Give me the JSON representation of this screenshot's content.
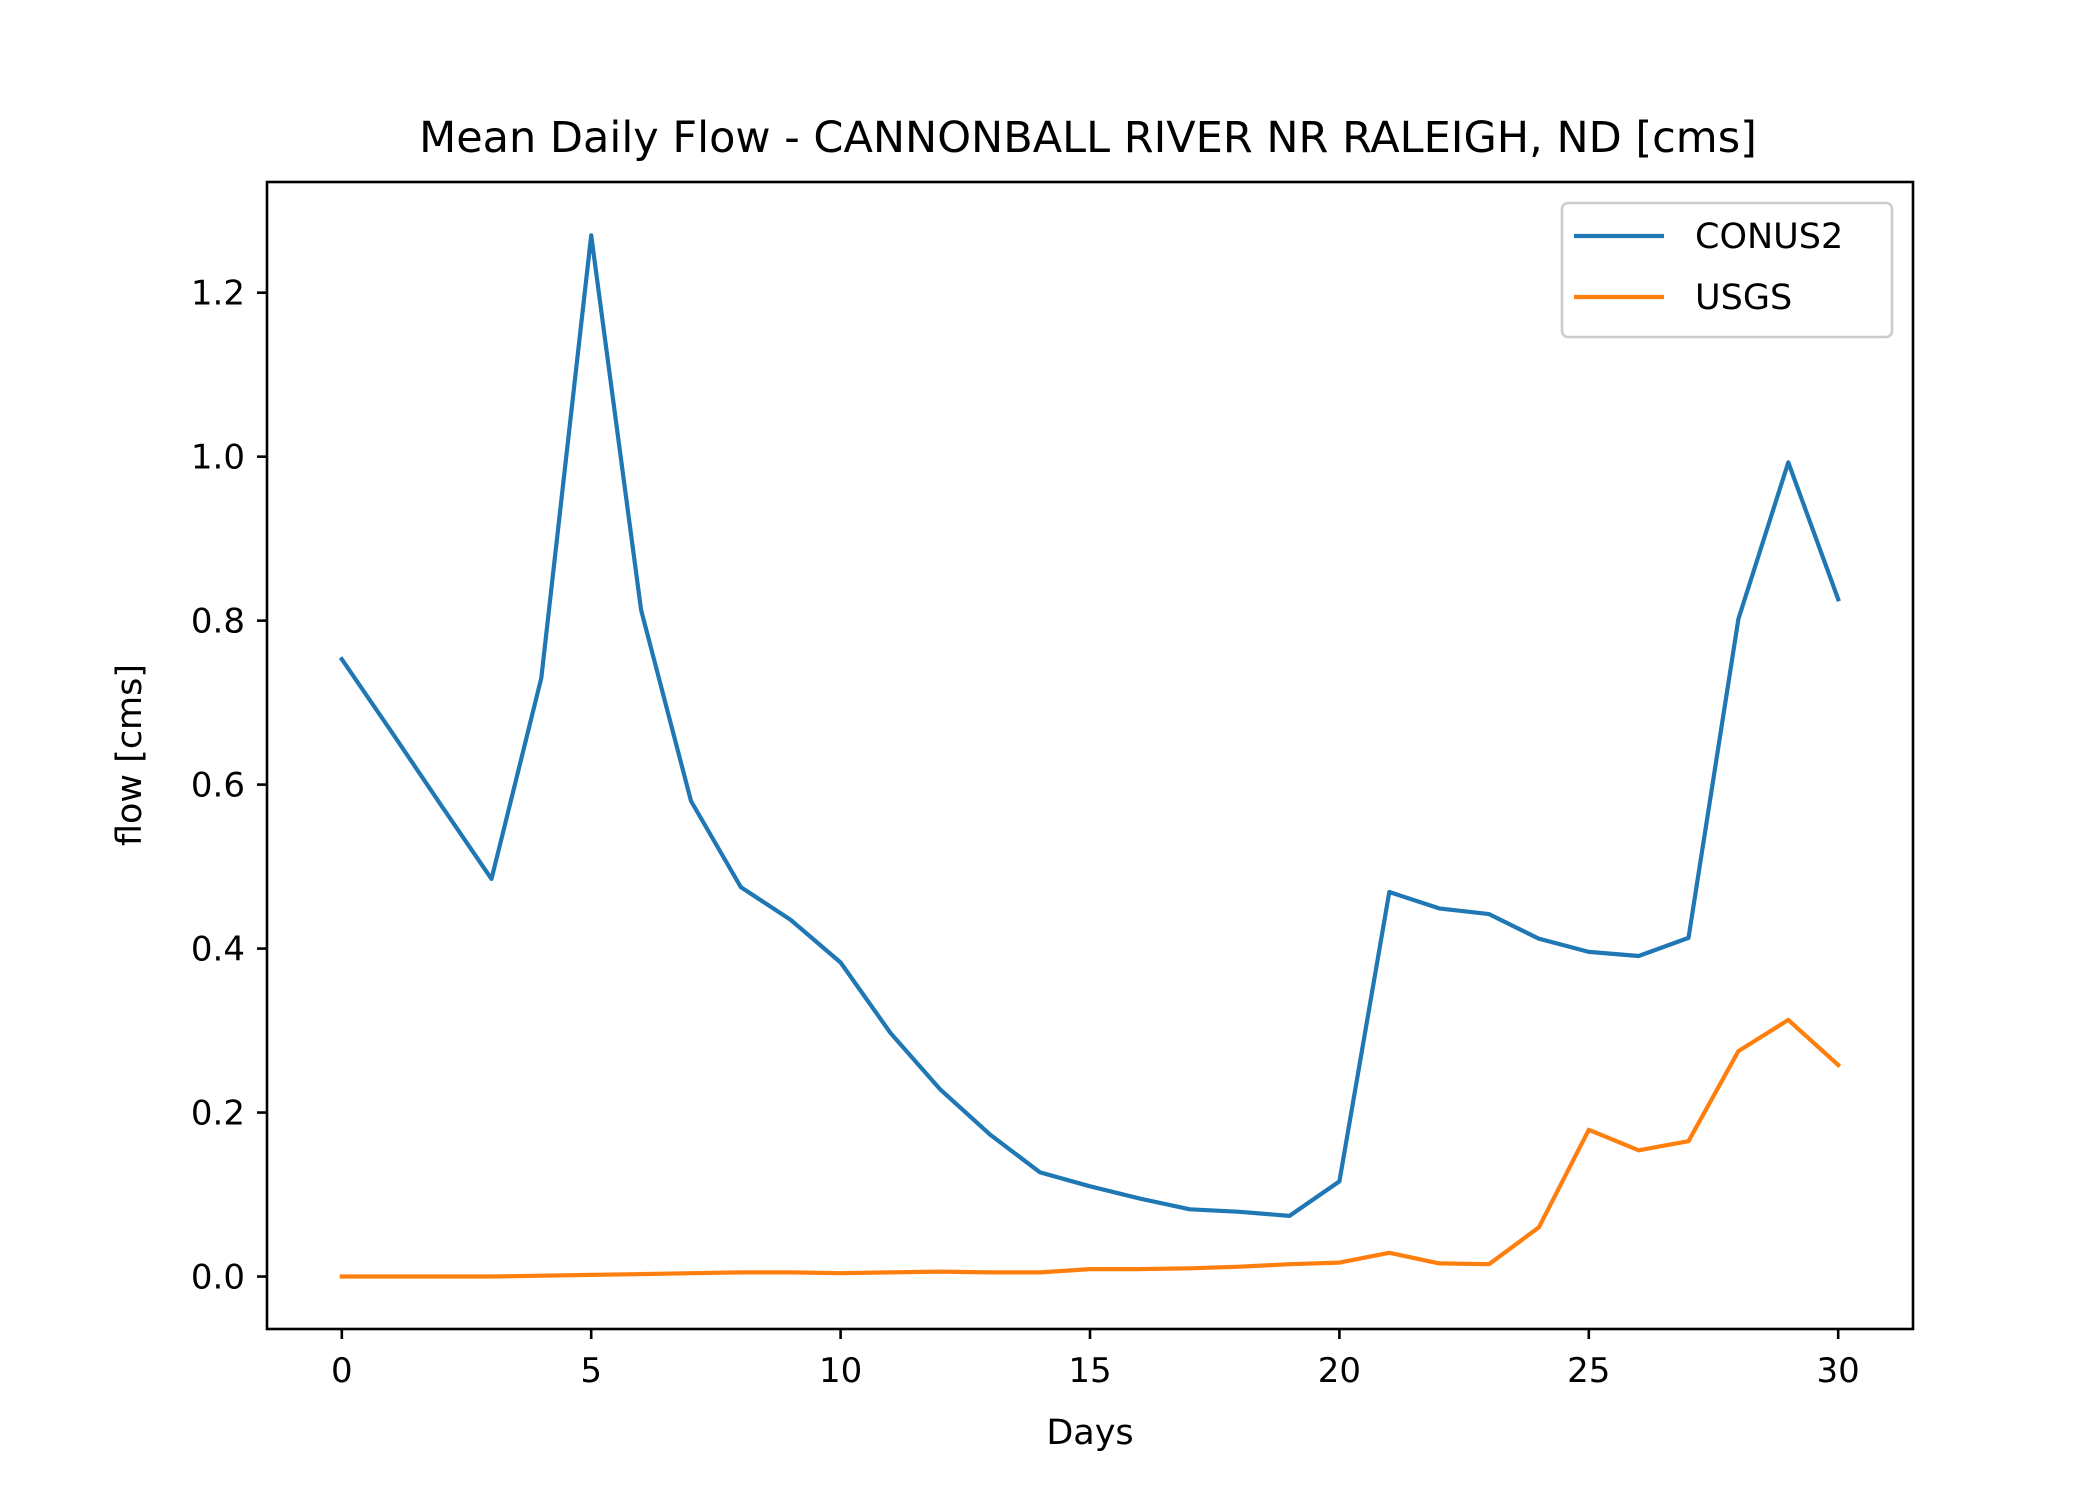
{
  "chart_data": {
    "type": "line",
    "title": "Mean Daily Flow - CANNONBALL RIVER NR RALEIGH, ND [cms]",
    "xlabel": "Days",
    "ylabel": "flow [cms]",
    "xlim": [
      -1.5,
      31.5
    ],
    "ylim": [
      -0.064,
      1.335
    ],
    "xticks": [
      0,
      5,
      10,
      15,
      20,
      25,
      30
    ],
    "yticks": [
      0.0,
      0.2,
      0.4,
      0.6,
      0.8,
      1.0,
      1.2
    ],
    "xtick_labels": [
      "0",
      "5",
      "10",
      "15",
      "20",
      "25",
      "30"
    ],
    "ytick_labels": [
      "0.0",
      "0.2",
      "0.4",
      "0.6",
      "0.8",
      "1.0",
      "1.2"
    ],
    "grid": false,
    "legend_position": "top-right",
    "x": [
      0,
      1,
      2,
      3,
      4,
      5,
      6,
      7,
      8,
      9,
      10,
      11,
      12,
      13,
      14,
      15,
      16,
      17,
      18,
      19,
      20,
      21,
      22,
      23,
      24,
      25,
      26,
      27,
      28,
      29,
      30
    ],
    "series": [
      {
        "name": "CONUS2",
        "color": "#1f77b4",
        "values": [
          0.753,
          0.664,
          0.574,
          0.485,
          0.73,
          1.27,
          0.813,
          0.58,
          0.475,
          0.435,
          0.383,
          0.297,
          0.228,
          0.173,
          0.127,
          0.11,
          0.095,
          0.082,
          0.079,
          0.074,
          0.116,
          0.469,
          0.449,
          0.442,
          0.412,
          0.396,
          0.391,
          0.413,
          0.802,
          0.993,
          0.826
        ]
      },
      {
        "name": "USGS",
        "color": "#ff7f0e",
        "values": [
          0.0,
          0.0,
          0.0,
          0.0,
          0.001,
          0.002,
          0.003,
          0.004,
          0.005,
          0.005,
          0.004,
          0.005,
          0.006,
          0.005,
          0.005,
          0.009,
          0.009,
          0.01,
          0.012,
          0.015,
          0.017,
          0.029,
          0.016,
          0.015,
          0.06,
          0.179,
          0.154,
          0.165,
          0.275,
          0.313,
          0.258
        ]
      }
    ]
  }
}
